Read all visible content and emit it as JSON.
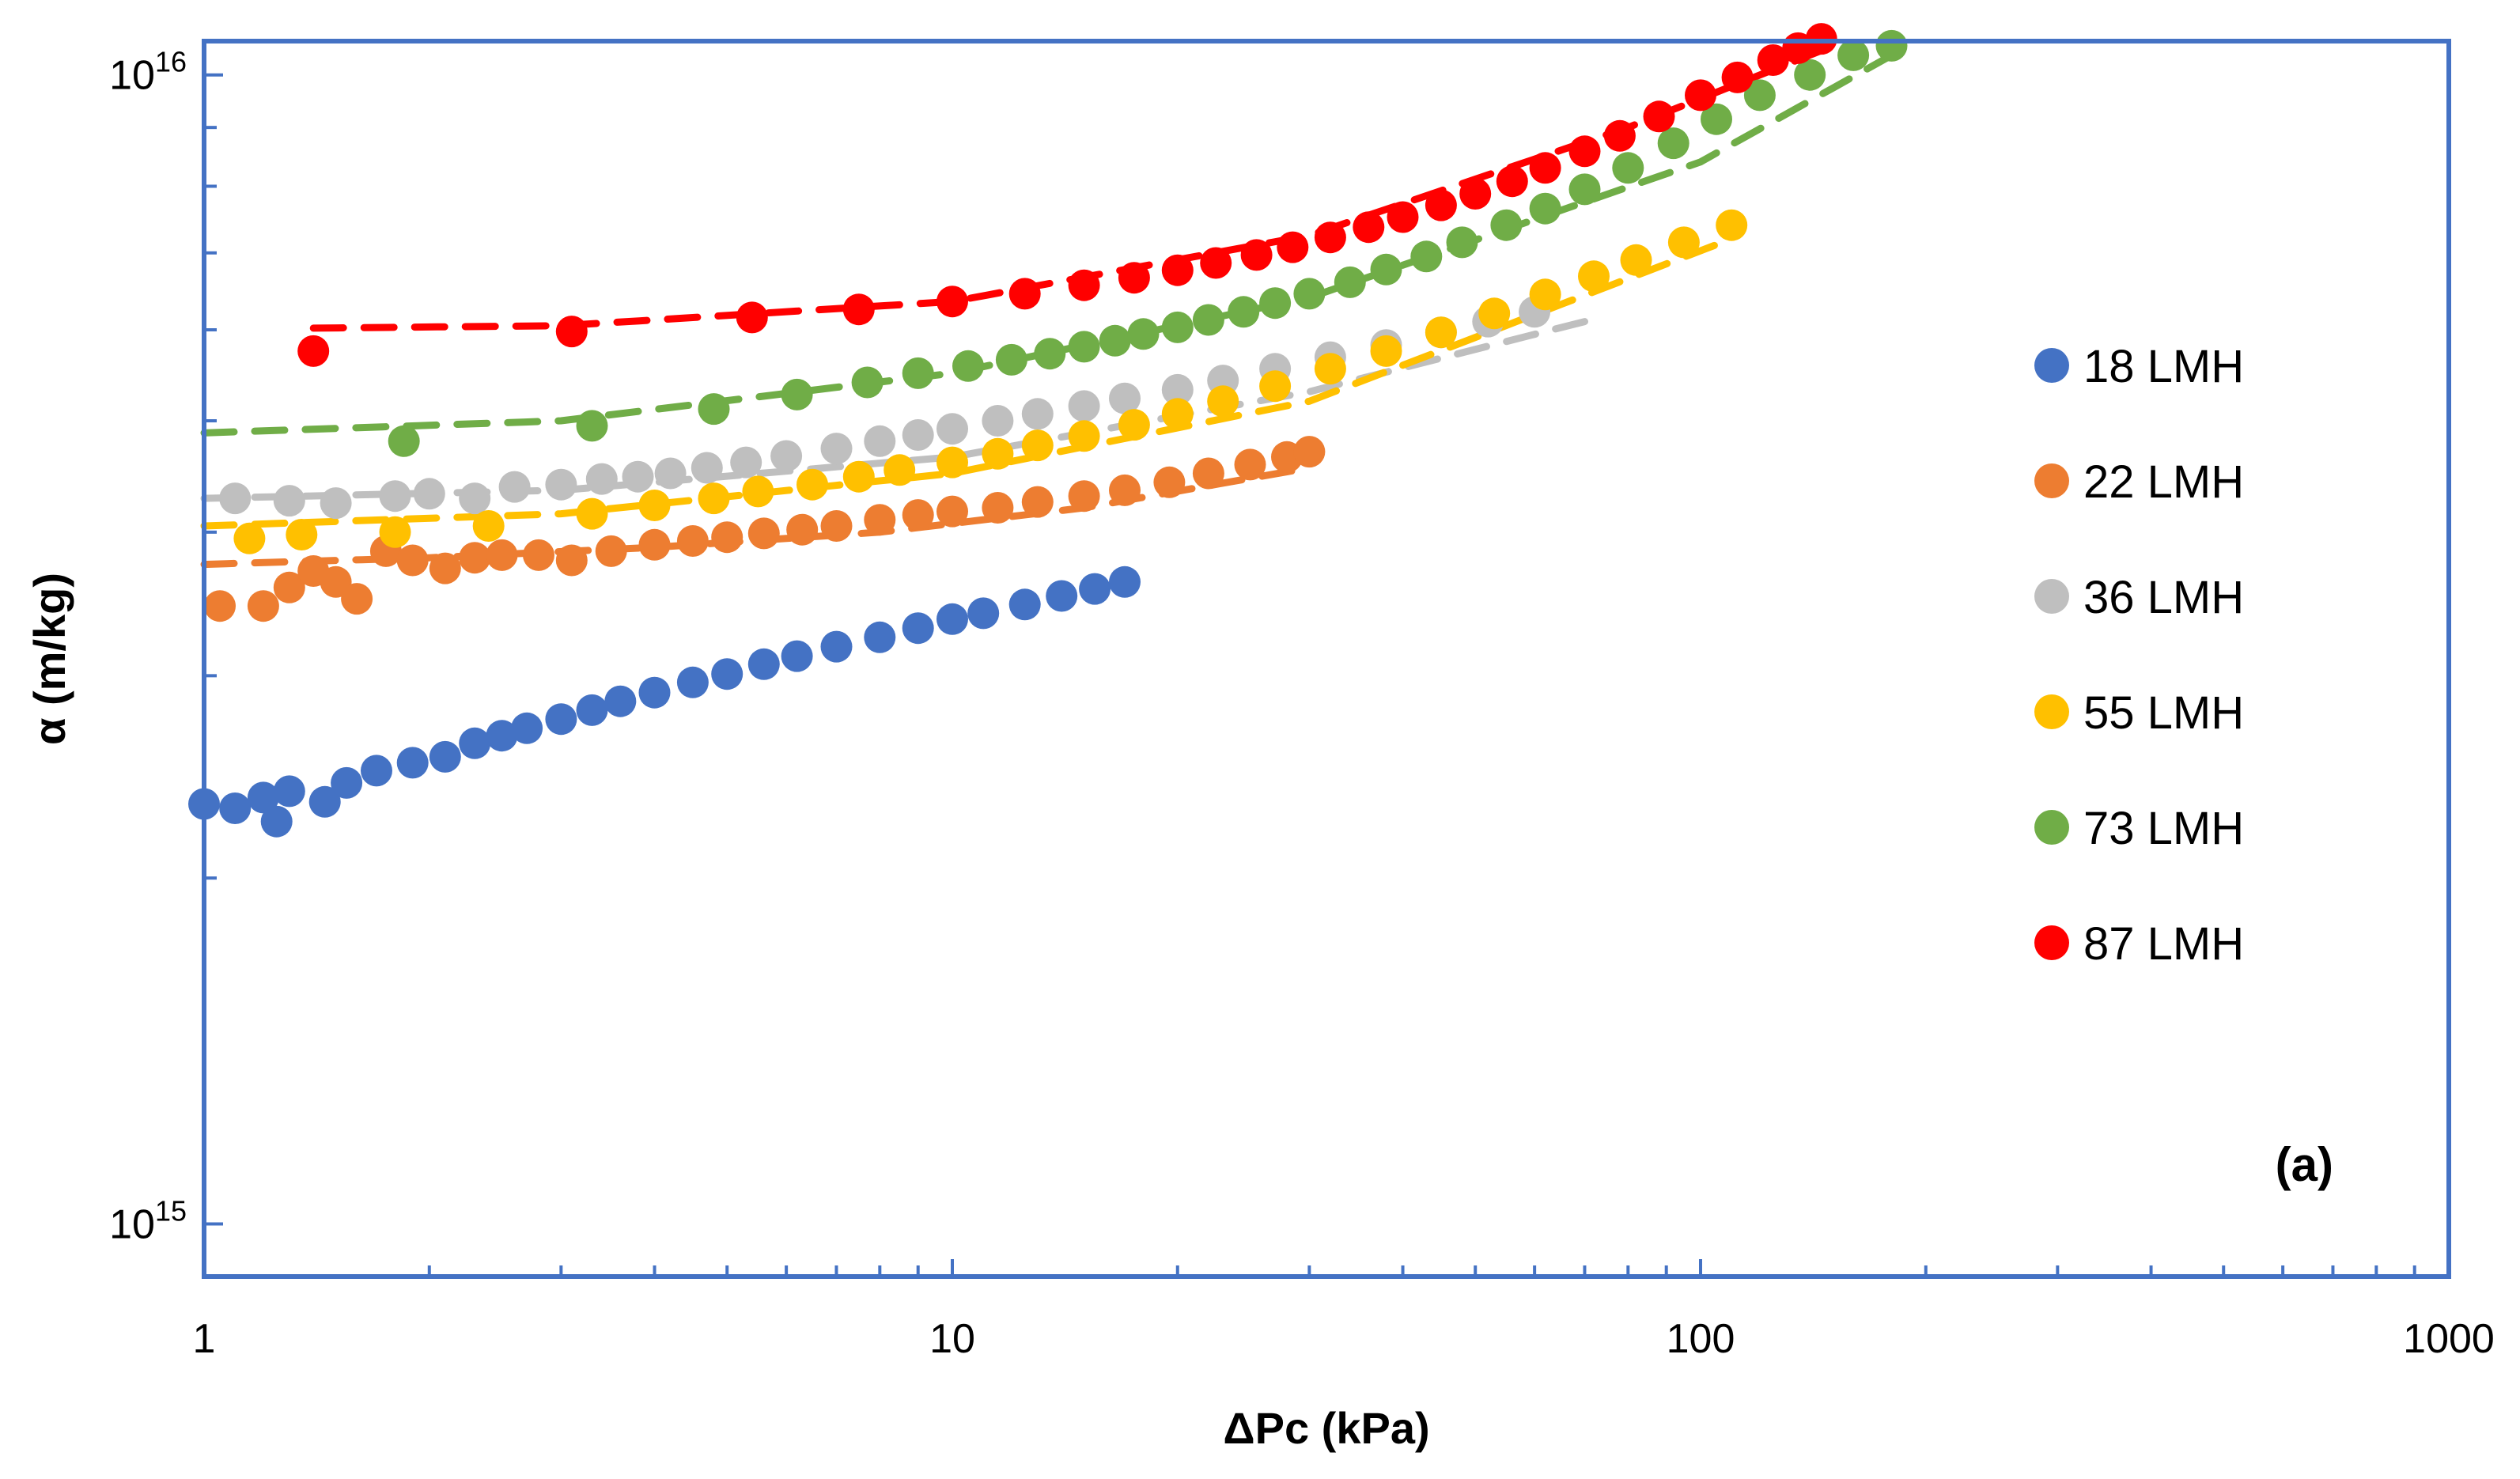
{
  "chart_data": {
    "type": "scatter",
    "title": "",
    "panel_label": "(a)",
    "xlabel": "ΔPc (kPa)",
    "ylabel": "α (m/kg)",
    "xscale": "log",
    "yscale": "log",
    "xlim": [
      1,
      1000
    ],
    "ylim": [
      900000000000000.0,
      1.07e+16
    ],
    "x_ticks": [
      {
        "value": 1,
        "label": "1"
      },
      {
        "value": 10,
        "label": "10"
      },
      {
        "value": 100,
        "label": "100"
      },
      {
        "value": 1000,
        "label": "1000"
      }
    ],
    "y_ticks": [
      {
        "value": 1000000000000000.0,
        "base": "10",
        "exp": "15"
      },
      {
        "value": 1e+16,
        "base": "10",
        "exp": "16"
      }
    ],
    "y_minor": [
      2000000000000000.0,
      3000000000000000.0,
      4000000000000000.0,
      5000000000000000.0,
      6000000000000000.0,
      7000000000000000.0,
      8000000000000000.0,
      9000000000000000.0
    ],
    "grid": false,
    "legend_position": "right",
    "series": [
      {
        "name": "18 LMH",
        "color": "#4472C4",
        "fit": false,
        "x": [
          1.0,
          1.1,
          1.2,
          1.25,
          1.3,
          1.45,
          1.55,
          1.7,
          1.9,
          2.1,
          2.3,
          2.5,
          2.7,
          3.0,
          3.3,
          3.6,
          4.0,
          4.5,
          5.0,
          5.6,
          6.2,
          7.0,
          8.0,
          9.0,
          10.0,
          11.0,
          12.5,
          14.0,
          15.5,
          17.0
        ],
        "y": [
          2320000000000000.0,
          2300000000000000.0,
          2350000000000000.0,
          2240000000000000.0,
          2380000000000000.0,
          2330000000000000.0,
          2420000000000000.0,
          2480000000000000.0,
          2520000000000000.0,
          2550000000000000.0,
          2620000000000000.0,
          2660000000000000.0,
          2700000000000000.0,
          2750000000000000.0,
          2800000000000000.0,
          2850000000000000.0,
          2900000000000000.0,
          2960000000000000.0,
          3010000000000000.0,
          3070000000000000.0,
          3120000000000000.0,
          3180000000000000.0,
          3240000000000000.0,
          3300000000000000.0,
          3360000000000000.0,
          3400000000000000.0,
          3460000000000000.0,
          3520000000000000.0,
          3570000000000000.0,
          3620000000000000.0
        ]
      },
      {
        "name": "22 LMH",
        "color": "#ED7D31",
        "fit": true,
        "fit_x": [
          1.0,
          2.0,
          4.0,
          8.0,
          15.0,
          30.0
        ],
        "fit_y": [
          3750000000000000.0,
          3800000000000000.0,
          3880000000000000.0,
          4000000000000000.0,
          4200000000000000.0,
          4550000000000000.0
        ],
        "x": [
          1.05,
          1.2,
          1.3,
          1.4,
          1.5,
          1.6,
          1.75,
          1.9,
          2.1,
          2.3,
          2.5,
          2.8,
          3.1,
          3.5,
          4.0,
          4.5,
          5.0,
          5.6,
          6.3,
          7.0,
          8.0,
          9.0,
          10.0,
          11.5,
          13.0,
          15.0,
          17.0,
          19.5,
          22.0,
          25.0,
          28.0,
          30.0
        ],
        "y": [
          3450000000000000.0,
          3450000000000000.0,
          3580000000000000.0,
          3700000000000000.0,
          3620000000000000.0,
          3500000000000000.0,
          3850000000000000.0,
          3780000000000000.0,
          3720000000000000.0,
          3800000000000000.0,
          3820000000000000.0,
          3820000000000000.0,
          3780000000000000.0,
          3850000000000000.0,
          3900000000000000.0,
          3930000000000000.0,
          3960000000000000.0,
          3990000000000000.0,
          4020000000000000.0,
          4050000000000000.0,
          4100000000000000.0,
          4140000000000000.0,
          4170000000000000.0,
          4200000000000000.0,
          4250000000000000.0,
          4300000000000000.0,
          4350000000000000.0,
          4420000000000000.0,
          4500000000000000.0,
          4580000000000000.0,
          4650000000000000.0,
          4700000000000000.0
        ]
      },
      {
        "name": "36 LMH",
        "color": "#BFBFBF",
        "fit": true,
        "fit_x": [
          1.0,
          3.0,
          10.0,
          30.0,
          70.0
        ],
        "fit_y": [
          4280000000000000.0,
          4350000000000000.0,
          4650000000000000.0,
          5300000000000000.0,
          6100000000000000.0
        ],
        "x": [
          1.1,
          1.3,
          1.5,
          1.8,
          2.0,
          2.3,
          2.6,
          3.0,
          3.4,
          3.8,
          4.2,
          4.7,
          5.3,
          6.0,
          7.0,
          8.0,
          9.0,
          10.0,
          11.5,
          13.0,
          15.0,
          17.0,
          20.0,
          23.0,
          27.0,
          32.0,
          38.0,
          45.0,
          52.0,
          60.0
        ],
        "y": [
          4280000000000000.0,
          4260000000000000.0,
          4240000000000000.0,
          4300000000000000.0,
          4320000000000000.0,
          4280000000000000.0,
          4380000000000000.0,
          4400000000000000.0,
          4450000000000000.0,
          4470000000000000.0,
          4500000000000000.0,
          4550000000000000.0,
          4600000000000000.0,
          4660000000000000.0,
          4730000000000000.0,
          4800000000000000.0,
          4860000000000000.0,
          4920000000000000.0,
          5000000000000000.0,
          5070000000000000.0,
          5150000000000000.0,
          5230000000000000.0,
          5320000000000000.0,
          5420000000000000.0,
          5550000000000000.0,
          5680000000000000.0,
          5820000000000000.0,
          5970000000000000.0,
          6100000000000000.0,
          6220000000000000.0
        ]
      },
      {
        "name": "55 LMH",
        "color": "#FFC000",
        "fit": true,
        "fit_x": [
          1.0,
          3.0,
          10.0,
          30.0,
          110.0
        ],
        "fit_y": [
          4050000000000000.0,
          4150000000000000.0,
          4500000000000000.0,
          5200000000000000.0,
          7200000000000000.0
        ],
        "x": [
          1.15,
          1.35,
          1.8,
          2.4,
          3.3,
          4.0,
          4.8,
          5.5,
          6.5,
          7.5,
          8.5,
          10.0,
          11.5,
          13.0,
          15.0,
          17.5,
          20.0,
          23.0,
          27.0,
          32.0,
          38.0,
          45.0,
          53.0,
          62.0,
          72.0,
          82.0,
          95.0,
          110.0
        ],
        "y": [
          3950000000000000.0,
          3980000000000000.0,
          4000000000000000.0,
          4050000000000000.0,
          4150000000000000.0,
          4220000000000000.0,
          4280000000000000.0,
          4340000000000000.0,
          4400000000000000.0,
          4470000000000000.0,
          4530000000000000.0,
          4600000000000000.0,
          4680000000000000.0,
          4760000000000000.0,
          4850000000000000.0,
          4960000000000000.0,
          5070000000000000.0,
          5200000000000000.0,
          5360000000000000.0,
          5550000000000000.0,
          5750000000000000.0,
          5970000000000000.0,
          6200000000000000.0,
          6440000000000000.0,
          6680000000000000.0,
          6900000000000000.0,
          7150000000000000.0,
          7400000000000000.0
        ]
      },
      {
        "name": "73 LMH",
        "color": "#70AD47",
        "fit": true,
        "fit_x": [
          1.0,
          3.0,
          10.0,
          30.0,
          100.0,
          180.0
        ],
        "fit_y": [
          4880000000000000.0,
          5000000000000000.0,
          5500000000000000.0,
          6400000000000000.0,
          8400000000000000.0,
          1.04e+16
        ],
        "x": [
          1.85,
          3.3,
          4.8,
          6.2,
          7.7,
          9.0,
          10.5,
          12.0,
          13.5,
          15.0,
          16.5,
          18.0,
          20.0,
          22.0,
          24.5,
          27.0,
          30.0,
          34.0,
          38.0,
          43.0,
          48.0,
          55.0,
          62.0,
          70.0,
          80.0,
          92.0,
          105.0,
          120.0,
          140.0,
          160.0,
          180.0
        ],
        "y": [
          4800000000000000.0,
          4950000000000000.0,
          5120000000000000.0,
          5270000000000000.0,
          5400000000000000.0,
          5500000000000000.0,
          5580000000000000.0,
          5650000000000000.0,
          5720000000000000.0,
          5800000000000000.0,
          5870000000000000.0,
          5950000000000000.0,
          6030000000000000.0,
          6120000000000000.0,
          6220000000000000.0,
          6330000000000000.0,
          6450000000000000.0,
          6600000000000000.0,
          6770000000000000.0,
          6950000000000000.0,
          7150000000000000.0,
          7400000000000000.0,
          7650000000000000.0,
          7950000000000000.0,
          8300000000000000.0,
          8720000000000000.0,
          9150000000000000.0,
          9600000000000000.0,
          1e+16,
          1.04e+16,
          1.06e+16
        ]
      },
      {
        "name": "87 LMH",
        "color": "#FF0000",
        "fit": true,
        "fit_x": [
          1.4,
          3.0,
          10.0,
          30.0,
          80.0,
          145.0
        ],
        "fit_y": [
          6020000000000000.0,
          6050000000000000.0,
          6350000000000000.0,
          7250000000000000.0,
          9000000000000000.0,
          1.05e+16
        ],
        "x": [
          1.4,
          3.1,
          5.4,
          7.5,
          10.0,
          12.5,
          15.0,
          17.5,
          20.0,
          22.5,
          25.5,
          28.5,
          32.0,
          36.0,
          40.0,
          45.0,
          50.0,
          56.0,
          62.0,
          70.0,
          78.0,
          88.0,
          100.0,
          112.0,
          125.0,
          135.0,
          145.0
        ],
        "y": [
          5750000000000000.0,
          5980000000000000.0,
          6150000000000000.0,
          6250000000000000.0,
          6350000000000000.0,
          6450000000000000.0,
          6560000000000000.0,
          6660000000000000.0,
          6760000000000000.0,
          6860000000000000.0,
          6970000000000000.0,
          7080000000000000.0,
          7220000000000000.0,
          7370000000000000.0,
          7520000000000000.0,
          7700000000000000.0,
          7880000000000000.0,
          8080000000000000.0,
          8300000000000000.0,
          8580000000000000.0,
          8850000000000000.0,
          9200000000000000.0,
          9600000000000000.0,
          9950000000000000.0,
          1.03e+16,
          1.055e+16,
          1.075e+16
        ]
      }
    ]
  }
}
